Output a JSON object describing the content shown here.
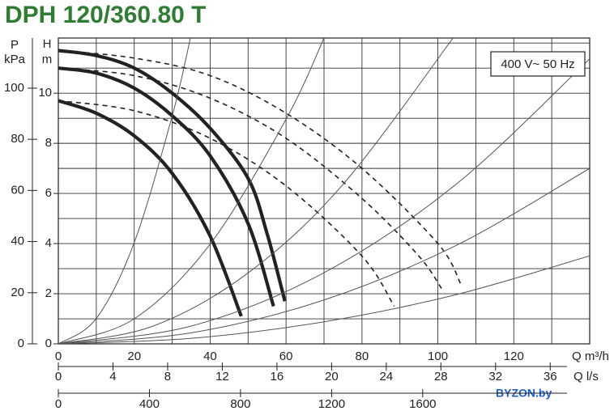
{
  "chart_data": {
    "type": "line",
    "title": "DPH 120/360.80 T",
    "annotation": "400 V~ 50 Hz",
    "watermark": "BYZON.by",
    "ylabel": [
      "H",
      "m"
    ],
    "y2label": [
      "P",
      "kPa"
    ],
    "xlabel": "Q m³/h",
    "x2label": "Q l/s",
    "xlim": [
      0,
      140
    ],
    "xticks": [
      0,
      20,
      40,
      60,
      80,
      100,
      120
    ],
    "xgrid": [
      10,
      30,
      50,
      70,
      90,
      110,
      130
    ],
    "ylim": [
      0,
      12.2
    ],
    "yticks": [
      0,
      2,
      4,
      6,
      8,
      10
    ],
    "ygrid": [
      1,
      3,
      5,
      7,
      9,
      11,
      12
    ],
    "y2lim": [
      0,
      119.6
    ],
    "y2ticks": [
      0,
      20,
      40,
      60,
      80,
      100
    ],
    "x2lim": [
      0,
      38.89
    ],
    "x2ticks": [
      0,
      4,
      8,
      12,
      16,
      20,
      24,
      28,
      32,
      36
    ],
    "x3lim": [
      0,
      2333.3
    ],
    "x3ticks": [
      0,
      400,
      800,
      1200,
      1600
    ],
    "grid": true,
    "series": [
      {
        "color": "#222222",
        "line_style": "solid",
        "weight": "bold",
        "x": [
          0,
          10,
          20,
          30,
          40,
          50,
          55,
          59.7
        ],
        "values": [
          11.7,
          11.5,
          11.0,
          10.0,
          8.6,
          6.6,
          4.4,
          1.7
        ]
      },
      {
        "color": "#222222",
        "line_style": "solid",
        "weight": "bold",
        "x": [
          0,
          10,
          20,
          30,
          40,
          50,
          56.7
        ],
        "values": [
          11.0,
          10.8,
          10.2,
          9.1,
          7.5,
          4.8,
          1.5
        ]
      },
      {
        "color": "#222222",
        "line_style": "solid",
        "weight": "bold",
        "x": [
          0,
          10,
          20,
          30,
          40,
          48.2
        ],
        "values": [
          9.7,
          9.2,
          8.3,
          6.8,
          4.3,
          1.1
        ]
      },
      {
        "color": "#222222",
        "line_style": "dashed",
        "weight": "medium",
        "x": [
          0,
          20,
          40,
          60,
          80,
          100,
          106
        ],
        "values": [
          11.7,
          11.4,
          10.7,
          9.2,
          7.0,
          4.0,
          2.4
        ]
      },
      {
        "color": "#222222",
        "line_style": "dashed",
        "weight": "medium",
        "x": [
          0,
          20,
          40,
          60,
          80,
          95,
          101
        ],
        "values": [
          11.0,
          10.7,
          9.8,
          8.2,
          5.8,
          3.5,
          2.2
        ]
      },
      {
        "color": "#222222",
        "line_style": "dashed",
        "weight": "medium",
        "x": [
          0,
          20,
          40,
          60,
          80,
          88.5
        ],
        "values": [
          9.7,
          9.3,
          8.2,
          6.3,
          3.5,
          1.5
        ]
      },
      {
        "color": "#555555",
        "line_style": "solid",
        "weight": "light",
        "x": [
          0,
          10,
          20,
          30,
          34.8
        ],
        "values": [
          0,
          1.01,
          4.04,
          9.09,
          12.2
        ]
      },
      {
        "color": "#555555",
        "line_style": "solid",
        "weight": "light",
        "x": [
          0,
          20,
          40,
          60,
          70
        ],
        "values": [
          0,
          1.0,
          3.98,
          8.96,
          12.2
        ]
      },
      {
        "color": "#555555",
        "line_style": "solid",
        "weight": "light",
        "x": [
          0,
          25,
          50,
          75,
          104
        ],
        "values": [
          0,
          0.71,
          2.83,
          6.36,
          12.2
        ]
      },
      {
        "color": "#555555",
        "line_style": "solid",
        "weight": "light",
        "x": [
          0,
          35,
          70,
          105,
          140
        ],
        "values": [
          0,
          0.71,
          2.84,
          6.39,
          11.37
        ]
      },
      {
        "color": "#555555",
        "line_style": "solid",
        "weight": "light",
        "x": [
          0,
          35,
          70,
          105,
          140
        ],
        "values": [
          0,
          0.44,
          1.75,
          3.94,
          7.0
        ]
      },
      {
        "color": "#555555",
        "line_style": "solid",
        "weight": "light",
        "x": [
          0,
          35,
          70,
          105,
          140
        ],
        "values": [
          0,
          0.22,
          0.88,
          1.97,
          3.51
        ]
      }
    ]
  }
}
